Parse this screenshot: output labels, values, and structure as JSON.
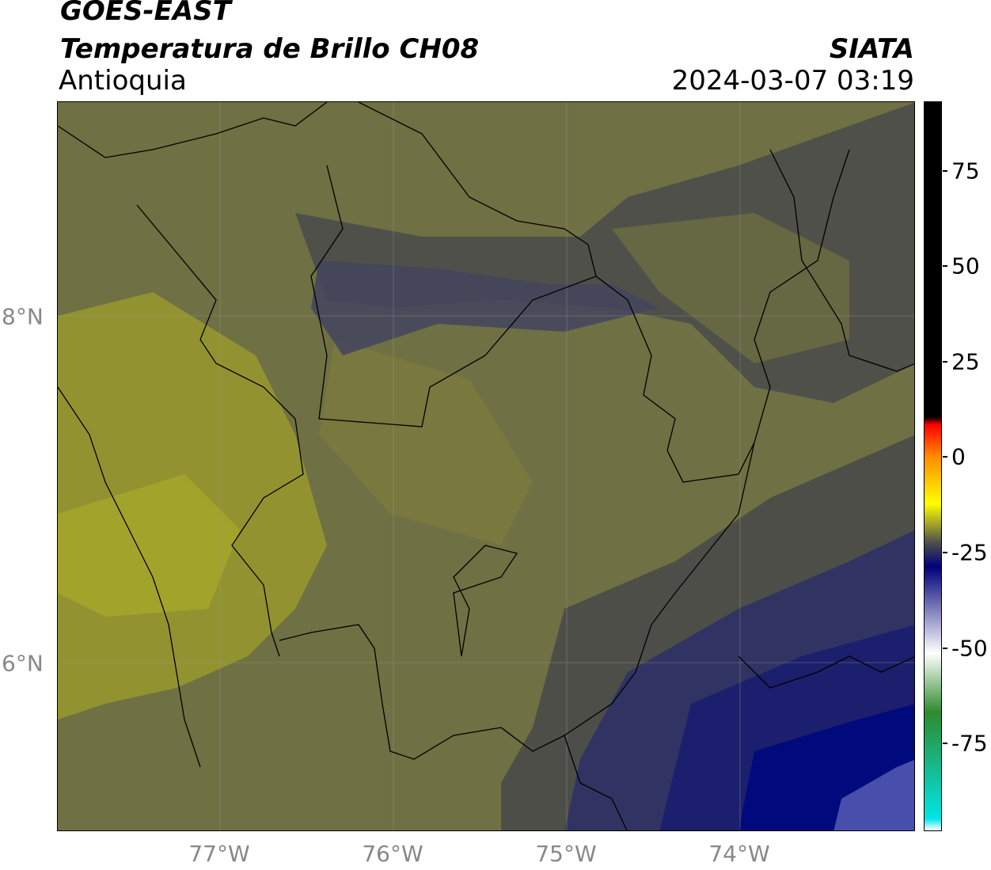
{
  "header": {
    "satellite": "GOES-EAST",
    "product": "Temperatura de Brillo CH08",
    "region": "Antioquia",
    "brand": "SIATA",
    "timestamp": "2024-03-07 03:19"
  },
  "map": {
    "lat_labels": [
      "8°N",
      "6°N"
    ],
    "lon_labels": [
      "77°W",
      "76°W",
      "75°W",
      "74°W"
    ],
    "colors": {
      "olive_dark": "#6f7043",
      "olive": "#7a7a3e",
      "olive_light": "#9e9f2a",
      "gray_dark": "#4a4a4a",
      "slate": "#44445e",
      "navy": "#1b1f6e",
      "deep_blue": "#000a7c"
    }
  },
  "colorbar": {
    "ticks": [
      "75",
      "50",
      "25",
      "0",
      "-25",
      "-50",
      "-75"
    ],
    "stops": [
      {
        "value": 90,
        "color": "#000000"
      },
      {
        "value": 10,
        "color": "#000000"
      },
      {
        "value": 8,
        "color": "#ff0000"
      },
      {
        "value": 0,
        "color": "#ff8c00"
      },
      {
        "value": -12,
        "color": "#ffff00"
      },
      {
        "value": -22,
        "color": "#4d4d4d"
      },
      {
        "value": -28,
        "color": "#00007a"
      },
      {
        "value": -50,
        "color": "#ffffff"
      },
      {
        "value": -65,
        "color": "#2e8b2e"
      },
      {
        "value": -92,
        "color": "#00e5e5"
      },
      {
        "value": -95,
        "color": "#ffffff"
      }
    ],
    "range": [
      -95,
      90
    ]
  }
}
